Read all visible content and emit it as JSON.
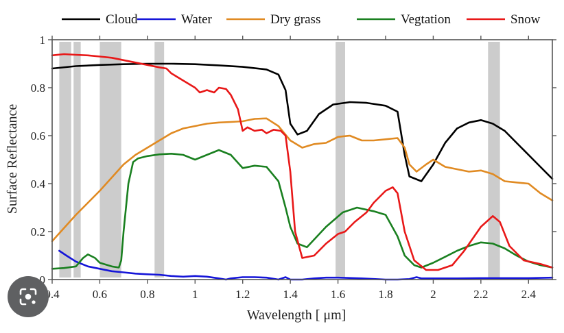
{
  "chart_data": {
    "type": "line",
    "title": "",
    "xlabel": "Wavelength [ μm]",
    "ylabel": "Surface Reflectance",
    "xlim": [
      0.4,
      2.5
    ],
    "ylim": [
      0,
      1
    ],
    "xticks": [
      0.4,
      0.6,
      0.8,
      1,
      1.2,
      1.4,
      1.6,
      1.8,
      2,
      2.2,
      2.4
    ],
    "xtick_labels": [
      "0.4",
      "0.6",
      "0.8",
      "1",
      "1.2",
      "1.4",
      "1.6",
      "1.8",
      "2",
      "2.2",
      "2.4"
    ],
    "yticks": [
      0,
      0.2,
      0.4,
      0.6,
      0.8,
      1
    ],
    "ytick_labels": [
      "0",
      "0.2",
      "0.4",
      "0.6",
      "0.8",
      "1"
    ],
    "grid": false,
    "legend_position": "top",
    "shaded_bands": [
      {
        "x0": 0.43,
        "x1": 0.48
      },
      {
        "x0": 0.49,
        "x1": 0.52
      },
      {
        "x0": 0.6,
        "x1": 0.69
      },
      {
        "x0": 0.83,
        "x1": 0.87
      },
      {
        "x0": 1.59,
        "x1": 1.63
      },
      {
        "x0": 2.23,
        "x1": 2.28
      }
    ],
    "series": [
      {
        "name": "Cloud",
        "color": "#000000",
        "x": [
          0.4,
          0.5,
          0.6,
          0.7,
          0.8,
          0.9,
          1.0,
          1.1,
          1.2,
          1.3,
          1.35,
          1.38,
          1.4,
          1.43,
          1.47,
          1.52,
          1.58,
          1.65,
          1.72,
          1.8,
          1.85,
          1.88,
          1.9,
          1.95,
          2.0,
          2.05,
          2.1,
          2.15,
          2.2,
          2.25,
          2.3,
          2.35,
          2.4,
          2.45,
          2.5
        ],
        "y": [
          0.88,
          0.89,
          0.895,
          0.898,
          0.9,
          0.9,
          0.898,
          0.893,
          0.887,
          0.876,
          0.855,
          0.79,
          0.65,
          0.605,
          0.62,
          0.69,
          0.73,
          0.74,
          0.737,
          0.725,
          0.7,
          0.52,
          0.43,
          0.41,
          0.48,
          0.57,
          0.63,
          0.655,
          0.665,
          0.65,
          0.62,
          0.57,
          0.52,
          0.47,
          0.42
        ]
      },
      {
        "name": "Water",
        "color": "#1515d8",
        "x": [
          0.43,
          0.46,
          0.5,
          0.55,
          0.6,
          0.65,
          0.7,
          0.75,
          0.8,
          0.85,
          0.9,
          0.95,
          1.0,
          1.05,
          1.1,
          1.13,
          1.15,
          1.2,
          1.25,
          1.3,
          1.35,
          1.38,
          1.4,
          1.45,
          1.5,
          1.55,
          1.6,
          1.7,
          1.8,
          1.85,
          1.9,
          1.93,
          1.95,
          2.0,
          2.1,
          2.2,
          2.3,
          2.4,
          2.5
        ],
        "y": [
          0.12,
          0.1,
          0.075,
          0.055,
          0.045,
          0.035,
          0.03,
          0.025,
          0.022,
          0.02,
          0.015,
          0.012,
          0.015,
          0.012,
          0.005,
          0.0,
          0.005,
          0.01,
          0.01,
          0.008,
          0.0,
          0.01,
          0.0,
          0.0,
          0.005,
          0.008,
          0.008,
          0.005,
          0.0,
          0.0,
          0.002,
          0.01,
          0.005,
          0.005,
          0.005,
          0.006,
          0.006,
          0.006,
          0.008
        ]
      },
      {
        "name": "Dry grass",
        "color": "#e08a22",
        "x": [
          0.4,
          0.5,
          0.6,
          0.7,
          0.75,
          0.8,
          0.9,
          0.95,
          1.0,
          1.05,
          1.1,
          1.15,
          1.2,
          1.25,
          1.3,
          1.35,
          1.4,
          1.45,
          1.5,
          1.55,
          1.6,
          1.65,
          1.7,
          1.75,
          1.8,
          1.85,
          1.88,
          1.9,
          1.93,
          1.97,
          2.0,
          2.05,
          2.1,
          2.15,
          2.2,
          2.25,
          2.3,
          2.35,
          2.4,
          2.45,
          2.5
        ],
        "y": [
          0.16,
          0.27,
          0.37,
          0.48,
          0.52,
          0.55,
          0.61,
          0.63,
          0.64,
          0.65,
          0.655,
          0.657,
          0.66,
          0.67,
          0.672,
          0.64,
          0.58,
          0.55,
          0.565,
          0.57,
          0.595,
          0.6,
          0.58,
          0.58,
          0.585,
          0.59,
          0.55,
          0.48,
          0.45,
          0.48,
          0.5,
          0.47,
          0.46,
          0.45,
          0.455,
          0.44,
          0.41,
          0.405,
          0.4,
          0.36,
          0.33
        ]
      },
      {
        "name": "Vegtation",
        "color": "#1a8020",
        "x": [
          0.4,
          0.45,
          0.5,
          0.53,
          0.55,
          0.58,
          0.6,
          0.65,
          0.68,
          0.69,
          0.7,
          0.72,
          0.74,
          0.76,
          0.8,
          0.85,
          0.9,
          0.95,
          1.0,
          1.05,
          1.1,
          1.15,
          1.2,
          1.25,
          1.3,
          1.35,
          1.38,
          1.4,
          1.43,
          1.47,
          1.55,
          1.62,
          1.68,
          1.75,
          1.8,
          1.85,
          1.88,
          1.92,
          1.95,
          2.0,
          2.05,
          2.1,
          2.15,
          2.2,
          2.25,
          2.3,
          2.35,
          2.4,
          2.45,
          2.5
        ],
        "y": [
          0.045,
          0.048,
          0.055,
          0.09,
          0.105,
          0.09,
          0.07,
          0.055,
          0.05,
          0.08,
          0.2,
          0.4,
          0.49,
          0.505,
          0.515,
          0.522,
          0.525,
          0.52,
          0.5,
          0.52,
          0.54,
          0.52,
          0.465,
          0.475,
          0.47,
          0.41,
          0.3,
          0.22,
          0.15,
          0.135,
          0.22,
          0.28,
          0.3,
          0.285,
          0.27,
          0.18,
          0.1,
          0.06,
          0.05,
          0.07,
          0.095,
          0.12,
          0.14,
          0.155,
          0.15,
          0.13,
          0.1,
          0.075,
          0.06,
          0.05
        ]
      },
      {
        "name": "Snow",
        "color": "#e81818",
        "x": [
          0.4,
          0.45,
          0.5,
          0.55,
          0.6,
          0.65,
          0.7,
          0.75,
          0.8,
          0.85,
          0.88,
          0.9,
          0.95,
          1.0,
          1.02,
          1.05,
          1.08,
          1.1,
          1.13,
          1.15,
          1.18,
          1.2,
          1.22,
          1.25,
          1.28,
          1.3,
          1.33,
          1.36,
          1.38,
          1.4,
          1.42,
          1.45,
          1.5,
          1.55,
          1.6,
          1.63,
          1.67,
          1.72,
          1.75,
          1.8,
          1.83,
          1.85,
          1.88,
          1.92,
          1.97,
          2.02,
          2.08,
          2.13,
          2.2,
          2.25,
          2.28,
          2.32,
          2.38,
          2.45,
          2.5
        ],
        "y": [
          0.935,
          0.94,
          0.937,
          0.935,
          0.93,
          0.925,
          0.915,
          0.905,
          0.895,
          0.885,
          0.88,
          0.86,
          0.83,
          0.8,
          0.78,
          0.79,
          0.78,
          0.8,
          0.795,
          0.77,
          0.71,
          0.62,
          0.635,
          0.62,
          0.625,
          0.61,
          0.625,
          0.62,
          0.6,
          0.45,
          0.2,
          0.09,
          0.1,
          0.15,
          0.19,
          0.2,
          0.24,
          0.28,
          0.32,
          0.37,
          0.385,
          0.36,
          0.2,
          0.08,
          0.04,
          0.04,
          0.06,
          0.12,
          0.22,
          0.265,
          0.24,
          0.14,
          0.08,
          0.065,
          0.05
        ]
      }
    ]
  },
  "overlay": {
    "lens_button_icon": "google-lens-icon"
  }
}
